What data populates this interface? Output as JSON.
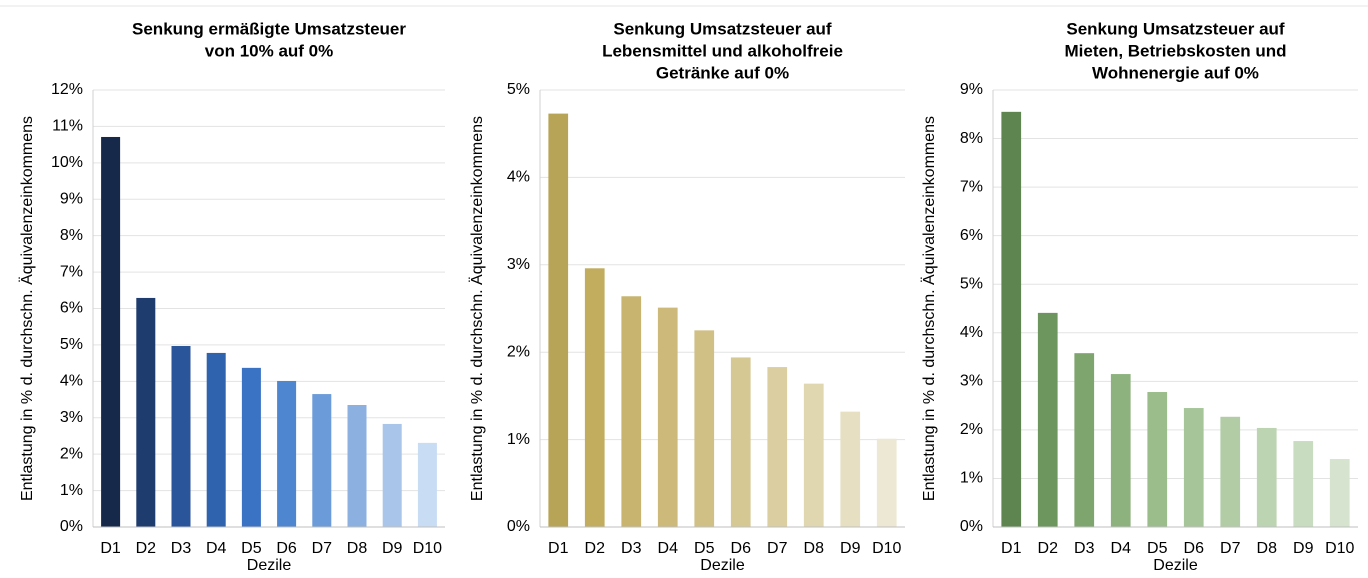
{
  "chart_data": [
    {
      "type": "bar",
      "title": [
        "Senkung ermäßigte Umsatzsteuer",
        "von 10% auf 0%"
      ],
      "y_label": "Entlastung in % d. durchschn. Äquivalenzeinkommens",
      "x_label": "Dezile",
      "categories": [
        "D1",
        "D2",
        "D3",
        "D4",
        "D5",
        "D6",
        "D7",
        "D8",
        "D9",
        "D10"
      ],
      "values": [
        10.71,
        6.29,
        4.97,
        4.78,
        4.37,
        4.01,
        3.65,
        3.35,
        2.83,
        2.31
      ],
      "colors": [
        "#17294a",
        "#1f3c6e",
        "#2a559a",
        "#2f63ad",
        "#3b73c4",
        "#4f86d0",
        "#6b9bd8",
        "#8cb1e0",
        "#a9c5ea",
        "#c8dcf3"
      ],
      "ylim": [
        0,
        12
      ],
      "yticks": [
        {
          "value": 0,
          "label": "0%"
        },
        {
          "value": 1,
          "label": "1%"
        },
        {
          "value": 2,
          "label": "2%"
        },
        {
          "value": 3,
          "label": "3%"
        },
        {
          "value": 4,
          "label": "4%"
        },
        {
          "value": 5,
          "label": "5%"
        },
        {
          "value": 6,
          "label": "6%"
        },
        {
          "value": 7,
          "label": "7%"
        },
        {
          "value": 8,
          "label": "8%"
        },
        {
          "value": 9,
          "label": "9%"
        },
        {
          "value": 10,
          "label": "10%"
        },
        {
          "value": 11,
          "label": "11%"
        },
        {
          "value": 12,
          "label": "12%"
        }
      ],
      "grid": true
    },
    {
      "type": "bar",
      "title": [
        "Senkung Umsatzsteuer auf",
        "Lebensmittel und alkoholfreie",
        "Getränke auf 0%"
      ],
      "y_label": "Entlastung in % d. durchschn. Äquivalenzeinkommens",
      "x_label": "Dezile",
      "categories": [
        "D1",
        "D2",
        "D3",
        "D4",
        "D5",
        "D6",
        "D7",
        "D8",
        "D9",
        "D10"
      ],
      "values": [
        4.73,
        2.96,
        2.64,
        2.51,
        2.25,
        1.94,
        1.83,
        1.64,
        1.32,
        1.01
      ],
      "colors": [
        "#b8a456",
        "#c2ad5f",
        "#c8b46e",
        "#cdba7a",
        "#d1c086",
        "#d6c893",
        "#dbcfa1",
        "#e0d6b0",
        "#e6dfc2",
        "#ede8d4"
      ],
      "ylim": [
        0,
        5
      ],
      "yticks": [
        {
          "value": 0,
          "label": "0%"
        },
        {
          "value": 1,
          "label": "1%"
        },
        {
          "value": 2,
          "label": "2%"
        },
        {
          "value": 3,
          "label": "3%"
        },
        {
          "value": 4,
          "label": "4%"
        },
        {
          "value": 5,
          "label": "5%"
        }
      ],
      "grid": true
    },
    {
      "type": "bar",
      "title": [
        "Senkung Umsatzsteuer auf",
        "Mieten, Betriebskosten und",
        "Wohnenergie auf 0%"
      ],
      "y_label": "Entlastung in % d. durchschn. Äquivalenzeinkommens",
      "x_label": "Dezile",
      "categories": [
        "D1",
        "D2",
        "D3",
        "D4",
        "D5",
        "D6",
        "D7",
        "D8",
        "D9",
        "D10"
      ],
      "values": [
        8.55,
        4.41,
        3.58,
        3.15,
        2.78,
        2.45,
        2.27,
        2.04,
        1.77,
        1.4
      ],
      "colors": [
        "#5e8450",
        "#6d955e",
        "#7da56d",
        "#8db27e",
        "#9abd8b",
        "#a6c599",
        "#b2cda6",
        "#bdd4b3",
        "#c8dcbf",
        "#d5e3cf"
      ],
      "ylim": [
        0,
        9
      ],
      "yticks": [
        {
          "value": 0,
          "label": "0%"
        },
        {
          "value": 1,
          "label": "1%"
        },
        {
          "value": 2,
          "label": "2%"
        },
        {
          "value": 3,
          "label": "3%"
        },
        {
          "value": 4,
          "label": "4%"
        },
        {
          "value": 5,
          "label": "5%"
        },
        {
          "value": 6,
          "label": "6%"
        },
        {
          "value": 7,
          "label": "7%"
        },
        {
          "value": 8,
          "label": "8%"
        },
        {
          "value": 9,
          "label": "9%"
        }
      ],
      "grid": true
    }
  ]
}
